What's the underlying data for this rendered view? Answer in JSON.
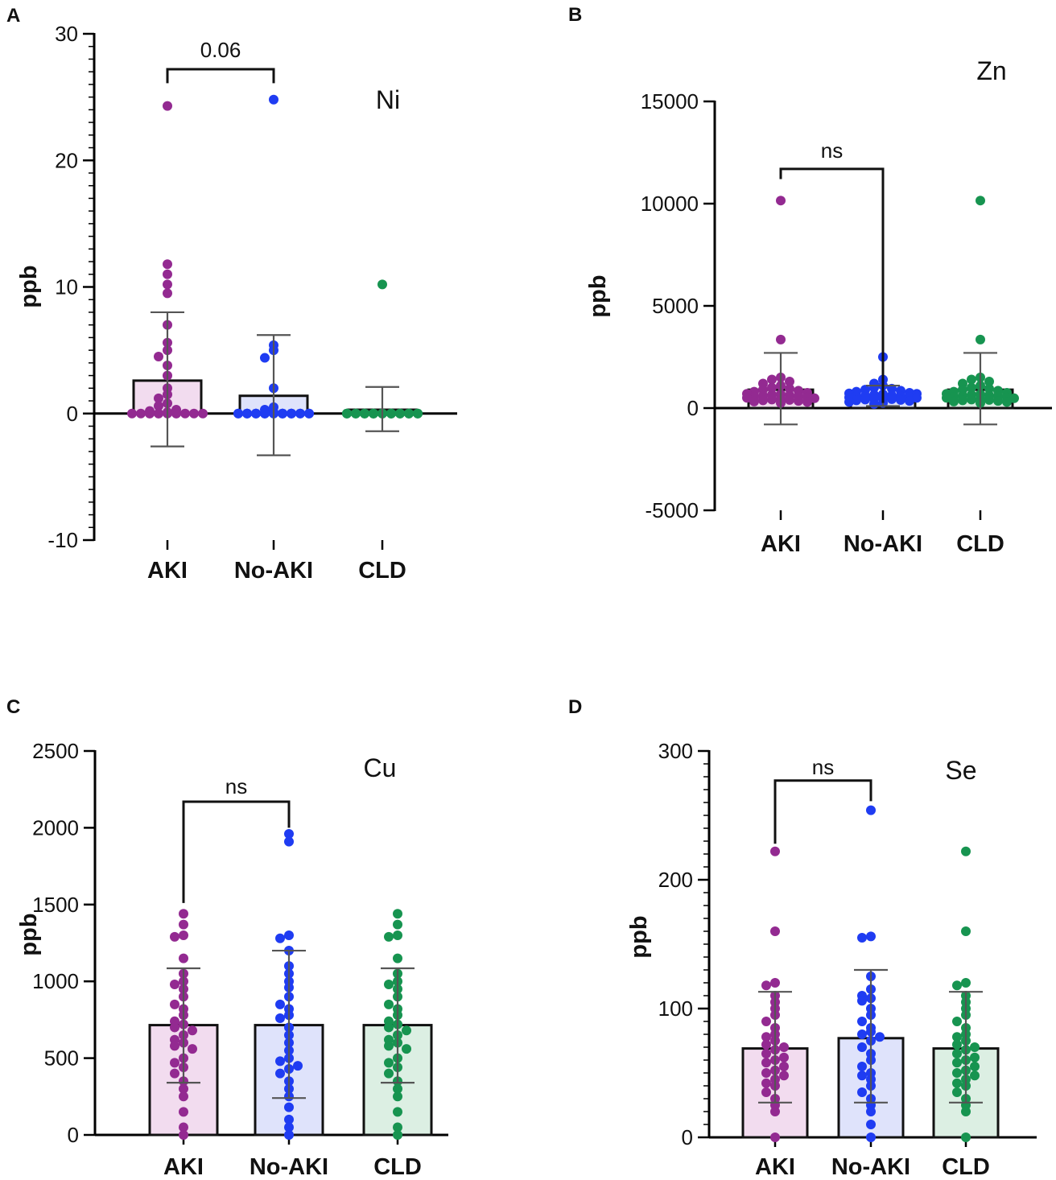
{
  "colors": {
    "AKI": "#932a91",
    "No-AKI": "#1f3cf2",
    "CLD": "#179450",
    "AKI_fill": "#f2dcef",
    "No-AKI_fill": "#dfe3fb",
    "CLD_fill": "#dcefe3"
  },
  "chart_data": [
    {
      "panel": "A",
      "type": "bar",
      "title": "Ni",
      "ylabel": "ppb",
      "xlabel": "",
      "categories": [
        "AKI",
        "No-AKI",
        "CLD"
      ],
      "ylim": [
        -10,
        30
      ],
      "yticks": [
        -10,
        0,
        10,
        20,
        30
      ],
      "yticks_label": [
        "-10",
        "0",
        "10",
        "20",
        "30"
      ],
      "minor_step": 1,
      "series": [
        {
          "name": "AKI",
          "mean": 2.6,
          "sd_low": -2.6,
          "sd_high": 8.0,
          "points": [
            24.3,
            11.8,
            11.0,
            10.2,
            9.5,
            7.0,
            5.6,
            5.0,
            4.5,
            3.8,
            3.0,
            2.0,
            1.5,
            1.2,
            0.8,
            0.6,
            0.3,
            0.2,
            0.1,
            0,
            0,
            0,
            0,
            0,
            0,
            0,
            0,
            0,
            0,
            0,
            0
          ]
        },
        {
          "name": "No-AKI",
          "mean": 1.4,
          "sd_low": -3.3,
          "sd_high": 6.2,
          "points": [
            24.8,
            5.4,
            5.0,
            4.4,
            2.0,
            0.5,
            0.3,
            0.1,
            0,
            0,
            0,
            0,
            0,
            0,
            0,
            0,
            0,
            0,
            0,
            0,
            0,
            0,
            0,
            0,
            0,
            0,
            0,
            0,
            0,
            0,
            0
          ]
        },
        {
          "name": "CLD",
          "mean": 0.3,
          "sd_low": -1.4,
          "sd_high": 2.1,
          "points": [
            10.2,
            0,
            0,
            0,
            0,
            0,
            0,
            0,
            0,
            0,
            0,
            0,
            0,
            0,
            0,
            0,
            0,
            0,
            0,
            0,
            0,
            0,
            0,
            0,
            0,
            0,
            0,
            0,
            0,
            0,
            0
          ]
        }
      ],
      "comparison": {
        "from": "AKI",
        "to": "No-AKI",
        "label": "0.06",
        "y_level": 27.2,
        "left_end": 26.1,
        "right_end": 26.1
      }
    },
    {
      "panel": "B",
      "type": "bar",
      "title": "Zn",
      "ylabel": "ppb",
      "xlabel": "",
      "categories": [
        "AKI",
        "No-AKI",
        "CLD"
      ],
      "ylim": [
        -5000,
        15000
      ],
      "yticks": [
        -5000,
        0,
        5000,
        10000,
        15000
      ],
      "yticks_label": [
        "-5000",
        "0",
        "5000",
        "10000",
        "15000"
      ],
      "minor_step": 0,
      "series": [
        {
          "name": "AKI",
          "mean": 900,
          "sd_low": -800,
          "sd_high": 2700,
          "points": [
            10150,
            3350,
            1500,
            1400,
            1300,
            1200,
            1100,
            1000,
            950,
            900,
            850,
            800,
            750,
            700,
            680,
            650,
            620,
            600,
            580,
            550,
            520,
            500,
            480,
            450,
            420,
            400,
            380,
            350,
            320,
            300,
            250
          ]
        },
        {
          "name": "No-AKI",
          "mean": 600,
          "sd_low": 100,
          "sd_high": 1100,
          "points": [
            2500,
            1400,
            1200,
            1100,
            1000,
            950,
            900,
            850,
            800,
            750,
            720,
            700,
            680,
            650,
            620,
            600,
            580,
            560,
            540,
            520,
            500,
            480,
            460,
            440,
            420,
            400,
            380,
            350,
            300,
            250,
            200
          ]
        },
        {
          "name": "CLD",
          "mean": 900,
          "sd_low": -800,
          "sd_high": 2700,
          "points": [
            10150,
            3350,
            1500,
            1400,
            1300,
            1200,
            1100,
            1000,
            950,
            900,
            850,
            800,
            750,
            700,
            680,
            650,
            620,
            600,
            580,
            550,
            520,
            500,
            480,
            450,
            420,
            400,
            380,
            350,
            320,
            300,
            250
          ]
        }
      ],
      "comparison": {
        "from": "AKI",
        "to": "No-AKI",
        "label": "ns",
        "y_level": 11700,
        "left_end": 11200,
        "right_end": 250
      }
    },
    {
      "panel": "C",
      "type": "bar",
      "title": "Cu",
      "ylabel": "ppb",
      "xlabel": "",
      "categories": [
        "AKI",
        "No-AKI",
        "CLD"
      ],
      "ylim": [
        0,
        2500
      ],
      "yticks": [
        0,
        500,
        1000,
        1500,
        2000,
        2500
      ],
      "yticks_label": [
        "0",
        "500",
        "1000",
        "1500",
        "2000",
        "2500"
      ],
      "minor_step": 0,
      "series": [
        {
          "name": "AKI",
          "mean": 715,
          "sd_low": 340,
          "sd_high": 1085,
          "points": [
            1440,
            1370,
            1300,
            1290,
            1150,
            1050,
            1000,
            980,
            950,
            900,
            850,
            820,
            780,
            740,
            720,
            700,
            680,
            650,
            620,
            600,
            580,
            560,
            500,
            470,
            440,
            400,
            350,
            300,
            250,
            150,
            50,
            0
          ]
        },
        {
          "name": "No-AKI",
          "mean": 715,
          "sd_low": 240,
          "sd_high": 1200,
          "points": [
            1960,
            1910,
            1300,
            1280,
            1200,
            1100,
            1050,
            1000,
            960,
            900,
            850,
            820,
            780,
            760,
            700,
            650,
            600,
            550,
            500,
            480,
            450,
            430,
            400,
            350,
            300,
            250,
            180,
            100,
            50,
            0
          ]
        },
        {
          "name": "CLD",
          "mean": 715,
          "sd_low": 340,
          "sd_high": 1085,
          "points": [
            1440,
            1370,
            1300,
            1290,
            1150,
            1050,
            1000,
            980,
            950,
            900,
            850,
            820,
            780,
            740,
            720,
            700,
            680,
            650,
            620,
            600,
            580,
            560,
            500,
            470,
            440,
            400,
            350,
            300,
            250,
            150,
            50,
            0
          ]
        }
      ],
      "comparison": {
        "from": "AKI",
        "to": "No-AKI",
        "label": "ns",
        "y_level": 2170,
        "left_end": 1510,
        "right_end": 2000
      }
    },
    {
      "panel": "D",
      "type": "bar",
      "title": "Se",
      "ylabel": "ppb",
      "xlabel": "",
      "categories": [
        "AKI",
        "No-AKI",
        "CLD"
      ],
      "ylim": [
        0,
        300
      ],
      "yticks": [
        0,
        100,
        200,
        300
      ],
      "yticks_label": [
        "0",
        "100",
        "200",
        "300"
      ],
      "minor_step": 10,
      "series": [
        {
          "name": "AKI",
          "mean": 69,
          "sd_low": 27,
          "sd_high": 113,
          "points": [
            222,
            160,
            120,
            118,
            110,
            105,
            100,
            95,
            90,
            85,
            80,
            78,
            75,
            72,
            70,
            68,
            65,
            62,
            60,
            58,
            55,
            52,
            50,
            48,
            45,
            42,
            40,
            35,
            30,
            25,
            20,
            0
          ]
        },
        {
          "name": "No-AKI",
          "mean": 77,
          "sd_low": 27,
          "sd_high": 130,
          "points": [
            254,
            156,
            155,
            125,
            115,
            110,
            108,
            106,
            100,
            95,
            90,
            85,
            82,
            80,
            78,
            75,
            70,
            65,
            60,
            55,
            50,
            48,
            45,
            40,
            35,
            30,
            25,
            20,
            10,
            0
          ]
        },
        {
          "name": "CLD",
          "mean": 69,
          "sd_low": 27,
          "sd_high": 113,
          "points": [
            222,
            160,
            120,
            118,
            110,
            105,
            100,
            95,
            90,
            85,
            80,
            78,
            75,
            72,
            70,
            68,
            65,
            62,
            60,
            58,
            55,
            52,
            50,
            48,
            45,
            42,
            40,
            35,
            30,
            25,
            20,
            0
          ]
        }
      ],
      "comparison": {
        "from": "AKI",
        "to": "No-AKI",
        "label": "ns",
        "y_level": 277,
        "left_end": 228,
        "right_end": 261
      }
    }
  ]
}
